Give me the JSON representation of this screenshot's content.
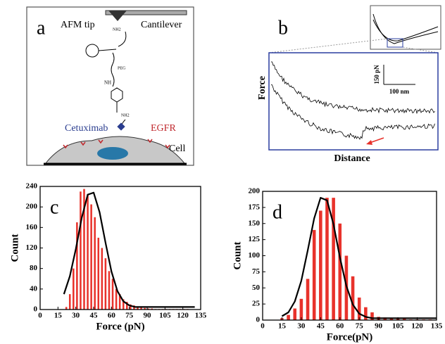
{
  "panel_a": {
    "label": "a",
    "tip": "AFM tip",
    "cantilever": "Cantilever",
    "nh2_top": "NH2",
    "peg": "PEG",
    "nh": "NH",
    "nh2_bottom": "NH2",
    "antibody": "Cetuximab",
    "receptor": "EGFR",
    "cell": "Cell"
  },
  "panel_b": {
    "label": "b",
    "ylabel": "Force",
    "xlabel": "Distance",
    "scale_force": "150 pN",
    "scale_distance": "100 nm"
  },
  "chart_data": [
    {
      "type": "bar",
      "label": "c",
      "xlabel": "Force (pN)",
      "ylabel": "Count",
      "color": "#e8322b",
      "x": [
        22,
        25,
        28,
        31,
        34,
        37,
        40,
        43,
        46,
        49,
        52,
        55,
        58,
        61,
        64,
        67,
        70,
        73,
        76,
        79,
        82,
        85,
        88,
        91,
        94,
        97,
        100,
        103,
        106,
        109,
        112,
        115,
        118,
        121,
        124
      ],
      "values": [
        5,
        30,
        80,
        170,
        230,
        235,
        225,
        205,
        180,
        140,
        120,
        100,
        75,
        60,
        40,
        30,
        20,
        15,
        10,
        8,
        6,
        4,
        3,
        2,
        2,
        1,
        1,
        1,
        1,
        1,
        1,
        1,
        1,
        1,
        1
      ],
      "fit": {
        "x": [
          20,
          25,
          30,
          35,
          40,
          45,
          50,
          55,
          60,
          65,
          70,
          75,
          80,
          85,
          90,
          95,
          100,
          105,
          110,
          115,
          120,
          125,
          130
        ],
        "values": [
          30,
          65,
          118,
          179,
          224,
          228,
          190,
          130,
          74,
          36,
          16,
          8,
          5,
          5,
          5,
          5,
          5,
          5,
          5,
          5,
          5,
          5,
          5
        ],
        "color": "#000000"
      },
      "xlim": [
        0,
        135
      ],
      "xticks": [
        0,
        15,
        30,
        45,
        60,
        75,
        90,
        105,
        120,
        135
      ],
      "ylim": [
        0,
        240
      ],
      "yticks": [
        0,
        40,
        80,
        120,
        160,
        200,
        240
      ]
    },
    {
      "type": "bar",
      "label": "d",
      "xlabel": "Force(pN)",
      "ylabel": "Count",
      "color": "#e8322b",
      "x": [
        15,
        20,
        25,
        30,
        35,
        40,
        45,
        50,
        55,
        60,
        65,
        70,
        75,
        80,
        85,
        90,
        95,
        100,
        105,
        110,
        115,
        120,
        125,
        130
      ],
      "values": [
        3,
        8,
        18,
        33,
        64,
        140,
        170,
        190,
        190,
        150,
        100,
        68,
        35,
        20,
        12,
        5,
        4,
        3,
        2,
        2,
        1,
        1,
        1,
        1
      ],
      "fit": {
        "x": [
          15,
          20,
          25,
          30,
          35,
          40,
          45,
          50,
          55,
          60,
          65,
          70,
          75,
          80,
          85,
          90,
          95,
          100,
          105,
          110,
          115,
          120,
          125,
          130,
          135
        ],
        "values": [
          6,
          12,
          29,
          61,
          108,
          158,
          190,
          186,
          149,
          97,
          53,
          24,
          10,
          5,
          3,
          3,
          3,
          3,
          3,
          3,
          3,
          3,
          3,
          3,
          3
        ],
        "color": "#000000"
      },
      "xlim": [
        0,
        135
      ],
      "xticks": [
        0,
        15,
        30,
        45,
        60,
        75,
        90,
        105,
        120,
        135
      ],
      "ylim": [
        0,
        200
      ],
      "yticks": [
        0,
        25,
        50,
        75,
        100,
        125,
        150,
        175,
        200
      ]
    }
  ]
}
